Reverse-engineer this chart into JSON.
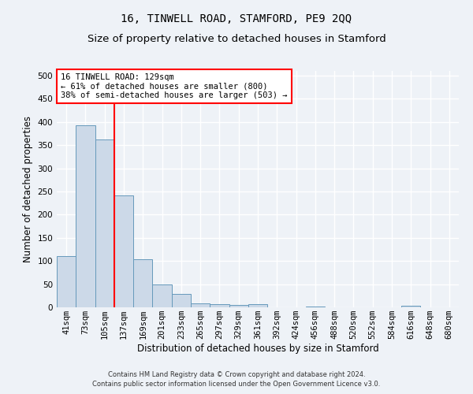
{
  "title1": "16, TINWELL ROAD, STAMFORD, PE9 2QQ",
  "title2": "Size of property relative to detached houses in Stamford",
  "xlabel": "Distribution of detached houses by size in Stamford",
  "ylabel": "Number of detached properties",
  "bins": [
    "41sqm",
    "73sqm",
    "105sqm",
    "137sqm",
    "169sqm",
    "201sqm",
    "233sqm",
    "265sqm",
    "297sqm",
    "329sqm",
    "361sqm",
    "392sqm",
    "424sqm",
    "456sqm",
    "488sqm",
    "520sqm",
    "552sqm",
    "584sqm",
    "616sqm",
    "648sqm",
    "680sqm"
  ],
  "values": [
    110,
    393,
    362,
    242,
    103,
    49,
    29,
    9,
    6,
    5,
    7,
    0,
    0,
    2,
    0,
    0,
    0,
    0,
    3,
    0,
    0
  ],
  "bar_color": "#ccd9e8",
  "bar_edge_color": "#6699bb",
  "vline_x": 2.5,
  "vline_color": "red",
  "annotation_text": "16 TINWELL ROAD: 129sqm\n← 61% of detached houses are smaller (800)\n38% of semi-detached houses are larger (503) →",
  "annotation_box_color": "white",
  "annotation_box_edge": "red",
  "ylim": [
    0,
    510
  ],
  "yticks": [
    0,
    50,
    100,
    150,
    200,
    250,
    300,
    350,
    400,
    450,
    500
  ],
  "footer1": "Contains HM Land Registry data © Crown copyright and database right 2024.",
  "footer2": "Contains public sector information licensed under the Open Government Licence v3.0.",
  "bg_color": "#eef2f7",
  "grid_color": "white",
  "title1_fontsize": 10,
  "title2_fontsize": 9.5,
  "axis_fontsize": 8.5,
  "tick_fontsize": 7.5,
  "footer_fontsize": 6.0
}
